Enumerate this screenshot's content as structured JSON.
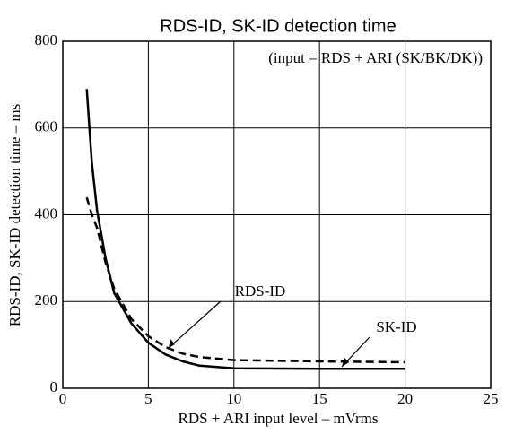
{
  "chart_data": {
    "type": "line",
    "title": "RDS-ID, SK-ID detection time",
    "annotation": "(input = RDS + ARI (SK/BK/DK))",
    "x_label": "RDS + ARI input level – mVrms",
    "y_label": "RDS-ID, SK-ID detection time – ms",
    "x": [
      1.4,
      1.7,
      2,
      2.5,
      3,
      4,
      5,
      6,
      7,
      8,
      10,
      15,
      20
    ],
    "series": [
      {
        "name": "RDS-ID",
        "color": "#000",
        "dashed": true,
        "values": [
          440,
          400,
          370,
          290,
          230,
          160,
          120,
          95,
          80,
          72,
          65,
          62,
          60
        ]
      },
      {
        "name": "SK-ID",
        "color": "#000",
        "dashed": false,
        "values": [
          690,
          520,
          410,
          300,
          220,
          150,
          105,
          78,
          62,
          52,
          46,
          45,
          45
        ]
      }
    ],
    "xlim": [
      0,
      25
    ],
    "xticks": [
      0,
      5,
      10,
      15,
      20,
      25
    ],
    "ylim": [
      0,
      800
    ],
    "yticks": [
      0,
      200,
      400,
      600,
      800
    ],
    "grid": true
  }
}
